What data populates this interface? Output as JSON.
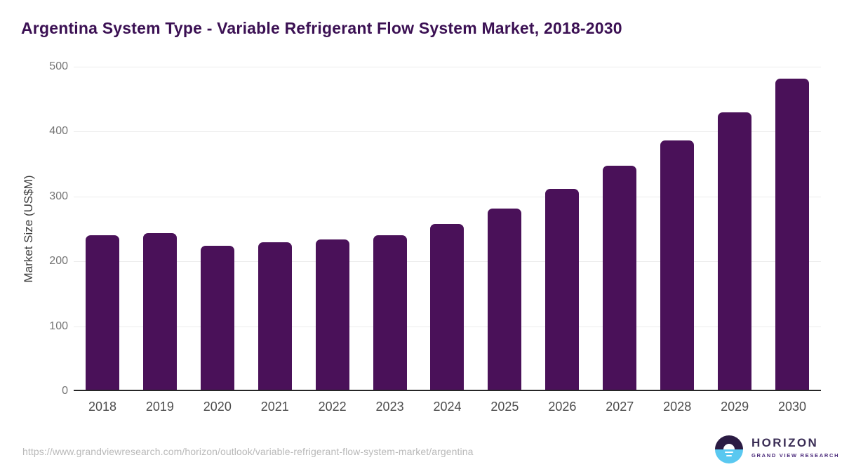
{
  "title": "Argentina System Type - Variable Refrigerant Flow System Market, 2018-2030",
  "chart_data": {
    "type": "bar",
    "title": "Argentina System Type - Variable Refrigerant Flow System Market, 2018-2030",
    "categories": [
      "2018",
      "2019",
      "2020",
      "2021",
      "2022",
      "2023",
      "2024",
      "2025",
      "2026",
      "2027",
      "2028",
      "2029",
      "2030"
    ],
    "values": [
      238,
      241,
      222,
      227,
      232,
      238,
      255,
      279,
      309,
      345,
      384,
      428,
      479
    ],
    "xlabel": "",
    "ylabel": "Market Size (US$M)",
    "ylim": [
      0,
      500
    ],
    "yticks": [
      0,
      100,
      200,
      300,
      400,
      500
    ],
    "grid": true,
    "legend": false,
    "bar_color": "#4A1159"
  },
  "colors": {
    "title_text": "#3B1053",
    "bar_fill": "#4A1159",
    "gridline": "#ececec",
    "axis_baseline": "#262626",
    "y_tick_text": "#757575",
    "x_tick_text": "#4d4d4d",
    "url_text": "#b9b9b9",
    "logo_dark": "#2B1B43",
    "logo_blue": "#5AC8F0",
    "logo_brand_text": "#3A2D55",
    "logo_sub_text": "#4B2A7B"
  },
  "footer": {
    "source_url": "https://www.grandviewresearch.com/horizon/outlook/variable-refrigerant-flow-system-market/argentina",
    "logo": {
      "brand": "HORIZON",
      "sub_brand": "GRAND VIEW RESEARCH"
    }
  }
}
